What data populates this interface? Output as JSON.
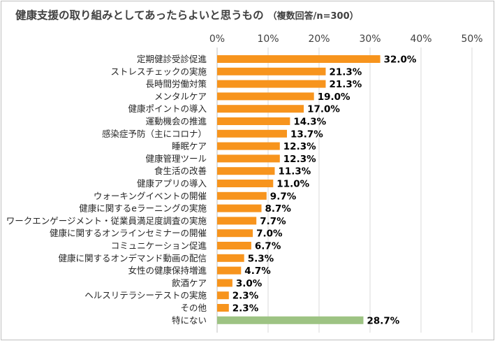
{
  "chart_data": {
    "type": "bar",
    "orientation": "horizontal",
    "title": "健康支援の取り組みとしてあったらよいと思うもの",
    "subtitle": "（複数回答/n=300）",
    "categories": [
      "定期健診受診促進",
      "ストレスチェックの実施",
      "長時間労働対策",
      "メンタルケア",
      "健康ポイントの導入",
      "運動機会の推進",
      "感染症予防（主にコロナ）",
      "睡眠ケア",
      "健康管理ツール",
      "食生活の改善",
      "健康アプリの導入",
      "ウォーキングイベントの開催",
      "健康に関するeラーニングの実施",
      "ワークエンゲージメント・従業員満足度調査の実施",
      "健康に関するオンラインセミナーの開催",
      "コミュニケーション促進",
      "健康に関するオンデマンド動画の配信",
      "女性の健康保持増進",
      "飲酒ケア",
      "ヘルスリテラシーテストの実施",
      "その他",
      "特にない"
    ],
    "values": [
      32.0,
      21.3,
      21.3,
      19.0,
      17.0,
      14.3,
      13.7,
      12.3,
      12.3,
      11.3,
      11.0,
      9.7,
      8.7,
      7.7,
      7.0,
      6.7,
      5.3,
      4.7,
      3.0,
      2.3,
      2.3,
      28.7
    ],
    "value_labels": [
      "32.0%",
      "21.3%",
      "21.3%",
      "19.0%",
      "17.0%",
      "14.3%",
      "13.7%",
      "12.3%",
      "12.3%",
      "11.3%",
      "11.0%",
      "9.7%",
      "8.7%",
      "7.7%",
      "7.0%",
      "6.7%",
      "5.3%",
      "4.7%",
      "3.0%",
      "2.3%",
      "2.3%",
      "28.7%"
    ],
    "xlim": [
      0,
      50
    ],
    "x_ticks": [
      "0%",
      "10%",
      "20%",
      "30%",
      "40%",
      "50%"
    ],
    "x_tick_values": [
      0,
      10,
      20,
      30,
      40,
      50
    ],
    "xaxis_position": "top",
    "grid": true,
    "colors": {
      "default": "#f7941d",
      "highlight": "#9dc383"
    },
    "highlight_category": "特にない"
  }
}
